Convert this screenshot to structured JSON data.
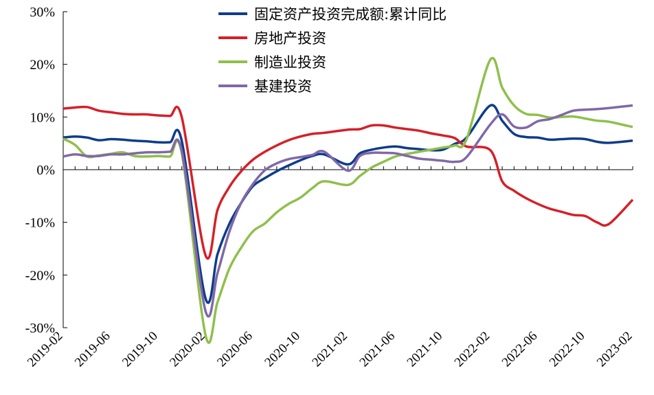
{
  "chart_data": {
    "type": "line",
    "title": "",
    "xlabel": "",
    "ylabel": "",
    "ylim": [
      -30,
      30
    ],
    "y_ticks": [
      "-30%",
      "-20%",
      "-10%",
      "0%",
      "10%",
      "20%",
      "30%"
    ],
    "x_ticks": [
      "2019-02",
      "2019-06",
      "2019-10",
      "2020-02",
      "2020-06",
      "2020-10",
      "2021-02",
      "2021-06",
      "2021-10",
      "2022-02",
      "2022-06",
      "2022-10",
      "2023-02"
    ],
    "x": [
      "2019-02",
      "2019-03",
      "2019-04",
      "2019-05",
      "2019-06",
      "2019-07",
      "2019-08",
      "2019-09",
      "2019-10",
      "2019-11",
      "2019-12",
      "2020-02",
      "2020-03",
      "2020-04",
      "2020-05",
      "2020-06",
      "2020-07",
      "2020-08",
      "2020-09",
      "2020-10",
      "2020-11",
      "2020-12",
      "2021-02",
      "2021-03",
      "2021-04",
      "2021-05",
      "2021-06",
      "2021-07",
      "2021-08",
      "2021-09",
      "2021-10",
      "2021-11",
      "2021-12",
      "2022-02",
      "2022-03",
      "2022-04",
      "2022-05",
      "2022-06",
      "2022-07",
      "2022-08",
      "2022-09",
      "2022-10",
      "2022-11",
      "2022-12",
      "2023-02"
    ],
    "legend_position": "top",
    "grid": false,
    "series": [
      {
        "name": "固定资产投资完成额:累计同比",
        "color": "#0e3c8a",
        "values": [
          6.1,
          6.3,
          6.1,
          5.6,
          5.8,
          5.7,
          5.5,
          5.4,
          5.2,
          5.2,
          5.4,
          -24.5,
          -16.1,
          -10.3,
          -6.3,
          -3.1,
          -1.6,
          -0.3,
          0.8,
          1.8,
          2.6,
          2.9,
          1.0,
          3.1,
          3.8,
          4.2,
          4.4,
          4.1,
          3.9,
          3.7,
          3.8,
          4.9,
          6.1,
          12.2,
          9.3,
          6.8,
          6.2,
          6.1,
          5.7,
          5.8,
          5.9,
          5.8,
          5.3,
          5.1,
          5.5
        ]
      },
      {
        "name": "房地产投资",
        "color": "#d52028",
        "values": [
          11.6,
          11.8,
          11.9,
          11.2,
          10.9,
          10.6,
          10.5,
          10.5,
          10.3,
          10.2,
          9.9,
          -16.3,
          -7.7,
          -3.3,
          -0.3,
          1.9,
          3.4,
          4.6,
          5.6,
          6.3,
          6.8,
          7.0,
          7.6,
          7.7,
          8.4,
          8.4,
          8.0,
          7.7,
          7.4,
          6.9,
          6.5,
          6.0,
          4.4,
          3.7,
          -2.2,
          -4.0,
          -5.4,
          -6.5,
          -7.4,
          -8.0,
          -8.6,
          -8.8,
          -10.0,
          -10.3,
          -5.7
        ]
      },
      {
        "name": "制造业投资",
        "color": "#8fbf4a",
        "values": [
          5.9,
          4.7,
          2.5,
          2.7,
          3.0,
          3.3,
          2.6,
          2.5,
          2.6,
          2.5,
          3.1,
          -31.5,
          -25.2,
          -18.8,
          -14.8,
          -11.7,
          -10.2,
          -8.1,
          -6.5,
          -5.3,
          -3.5,
          -2.2,
          -2.9,
          -1.2,
          0.4,
          1.5,
          2.5,
          3.0,
          3.4,
          3.8,
          4.2,
          4.6,
          5.8,
          20.9,
          15.6,
          12.2,
          10.6,
          10.4,
          9.9,
          10.0,
          10.1,
          9.7,
          9.3,
          9.1,
          8.1
        ]
      },
      {
        "name": "基建投资",
        "color": "#8068a8",
        "values": [
          2.5,
          2.9,
          2.6,
          2.6,
          2.9,
          2.9,
          3.1,
          3.3,
          3.3,
          3.4,
          3.5,
          -26.9,
          -19.7,
          -11.8,
          -6.3,
          -2.7,
          -0.1,
          1.2,
          2.0,
          2.4,
          2.8,
          3.4,
          -0.2,
          2.6,
          3.2,
          3.2,
          3.1,
          2.6,
          2.1,
          1.9,
          1.7,
          1.5,
          2.4,
          8.6,
          10.5,
          8.2,
          8.0,
          9.2,
          9.6,
          10.4,
          11.2,
          11.4,
          11.5,
          11.7,
          12.2
        ]
      }
    ]
  }
}
